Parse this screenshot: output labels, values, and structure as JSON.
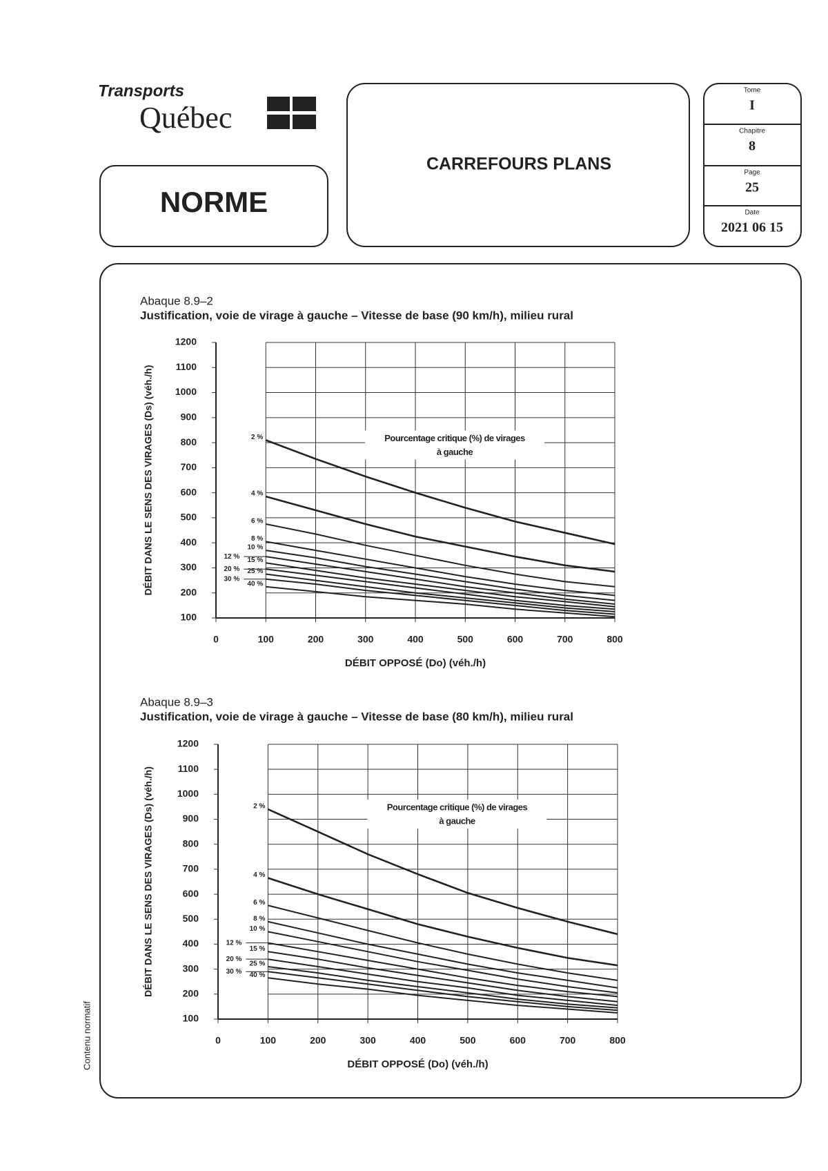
{
  "header": {
    "logo": {
      "line1": "Transports",
      "line2": "Québec"
    },
    "norme": "NORME",
    "title": "CARREFOURS PLANS",
    "info": [
      {
        "label": "Tome",
        "value": "I"
      },
      {
        "label": "Chapitre",
        "value": "8"
      },
      {
        "label": "Page",
        "value": "25"
      },
      {
        "label": "Date",
        "value": "2021 06 15"
      }
    ]
  },
  "side_note": "Contenu normatif",
  "chart_data": [
    {
      "type": "line",
      "caption": "Abaque 8.9–2",
      "title": "Justification, voie de virage à gauche – Vitesse de base (90 km/h), milieu rural",
      "x_label": "DÉBIT OPPOSÉ (Do) (véh./h)",
      "y_label": "DÉBIT DANS LE SENS DES VIRAGES (Ds) (véh./h)",
      "annotation": [
        "Pourcentage critique (%) de virages",
        "à gauche"
      ],
      "xlim": [
        0,
        800
      ],
      "xticks": [
        0,
        100,
        200,
        300,
        400,
        500,
        600,
        700,
        800
      ],
      "ylim": [
        100,
        1200
      ],
      "yticks": [
        100,
        200,
        300,
        400,
        500,
        600,
        700,
        800,
        900,
        1000,
        1100,
        1200
      ],
      "grid": true,
      "x": [
        100,
        200,
        300,
        400,
        500,
        600,
        700,
        800
      ],
      "series": [
        {
          "name": "2 %",
          "color": "#222222",
          "values": [
            810,
            735,
            665,
            600,
            540,
            485,
            440,
            395
          ]
        },
        {
          "name": "4 %",
          "color": "#222222",
          "values": [
            585,
            530,
            475,
            425,
            385,
            345,
            310,
            285
          ]
        },
        {
          "name": "6 %",
          "color": "#222222",
          "values": [
            475,
            435,
            390,
            350,
            310,
            275,
            245,
            225
          ]
        },
        {
          "name": "8 %",
          "color": "#222222",
          "values": [
            405,
            370,
            335,
            300,
            265,
            235,
            210,
            190
          ]
        },
        {
          "name": "10 %",
          "color": "#222222",
          "values": [
            370,
            340,
            305,
            275,
            245,
            215,
            190,
            170
          ]
        },
        {
          "name": "12 %",
          "color": "#222222",
          "values": [
            345,
            315,
            285,
            255,
            225,
            200,
            175,
            155
          ]
        },
        {
          "name": "15 %",
          "color": "#222222",
          "values": [
            320,
            290,
            260,
            235,
            210,
            185,
            165,
            145
          ]
        },
        {
          "name": "20 %",
          "color": "#222222",
          "values": [
            295,
            270,
            245,
            220,
            195,
            170,
            150,
            135
          ]
        },
        {
          "name": "25 %",
          "color": "#222222",
          "values": [
            275,
            250,
            225,
            200,
            180,
            160,
            140,
            125
          ]
        },
        {
          "name": "30 %",
          "color": "#222222",
          "values": [
            255,
            235,
            210,
            190,
            170,
            150,
            130,
            115
          ]
        },
        {
          "name": "40 %",
          "color": "#222222",
          "values": [
            225,
            205,
            185,
            170,
            155,
            135,
            120,
            105
          ]
        }
      ]
    },
    {
      "type": "line",
      "caption": "Abaque 8.9–3",
      "title": "Justification, voie de virage à gauche – Vitesse de base (80 km/h), milieu rural",
      "x_label": "DÉBIT OPPOSÉ (Do) (véh./h)",
      "y_label": "DÉBIT DANS LE SENS DES VIRAGES (Ds) (véh./h)",
      "annotation": [
        "Pourcentage critique (%) de virages",
        "à gauche"
      ],
      "xlim": [
        0,
        800
      ],
      "xticks": [
        0,
        100,
        200,
        300,
        400,
        500,
        600,
        700,
        800
      ],
      "ylim": [
        100,
        1200
      ],
      "yticks": [
        100,
        200,
        300,
        400,
        500,
        600,
        700,
        800,
        900,
        1000,
        1100,
        1200
      ],
      "grid": true,
      "x": [
        100,
        200,
        300,
        400,
        500,
        600,
        700,
        800
      ],
      "series": [
        {
          "name": "2 %",
          "color": "#222222",
          "values": [
            940,
            850,
            760,
            680,
            605,
            545,
            490,
            440
          ]
        },
        {
          "name": "4 %",
          "color": "#222222",
          "values": [
            665,
            600,
            540,
            480,
            430,
            385,
            345,
            315
          ]
        },
        {
          "name": "6 %",
          "color": "#222222",
          "values": [
            555,
            505,
            455,
            405,
            360,
            320,
            285,
            255
          ]
        },
        {
          "name": "8 %",
          "color": "#222222",
          "values": [
            490,
            445,
            400,
            360,
            320,
            285,
            255,
            225
          ]
        },
        {
          "name": "10 %",
          "color": "#222222",
          "values": [
            450,
            410,
            370,
            330,
            295,
            260,
            230,
            205
          ]
        },
        {
          "name": "12 %",
          "color": "#222222",
          "values": [
            405,
            370,
            335,
            300,
            265,
            235,
            210,
            190
          ]
        },
        {
          "name": "15 %",
          "color": "#222222",
          "values": [
            370,
            340,
            305,
            275,
            245,
            215,
            190,
            170
          ]
        },
        {
          "name": "20 %",
          "color": "#222222",
          "values": [
            340,
            310,
            280,
            250,
            225,
            195,
            175,
            155
          ]
        },
        {
          "name": "25 %",
          "color": "#222222",
          "values": [
            310,
            285,
            255,
            230,
            205,
            180,
            160,
            145
          ]
        },
        {
          "name": "30 %",
          "color": "#222222",
          "values": [
            290,
            265,
            240,
            215,
            190,
            170,
            150,
            135
          ]
        },
        {
          "name": "40 %",
          "color": "#222222",
          "values": [
            265,
            240,
            220,
            195,
            175,
            155,
            140,
            125
          ]
        }
      ]
    }
  ]
}
